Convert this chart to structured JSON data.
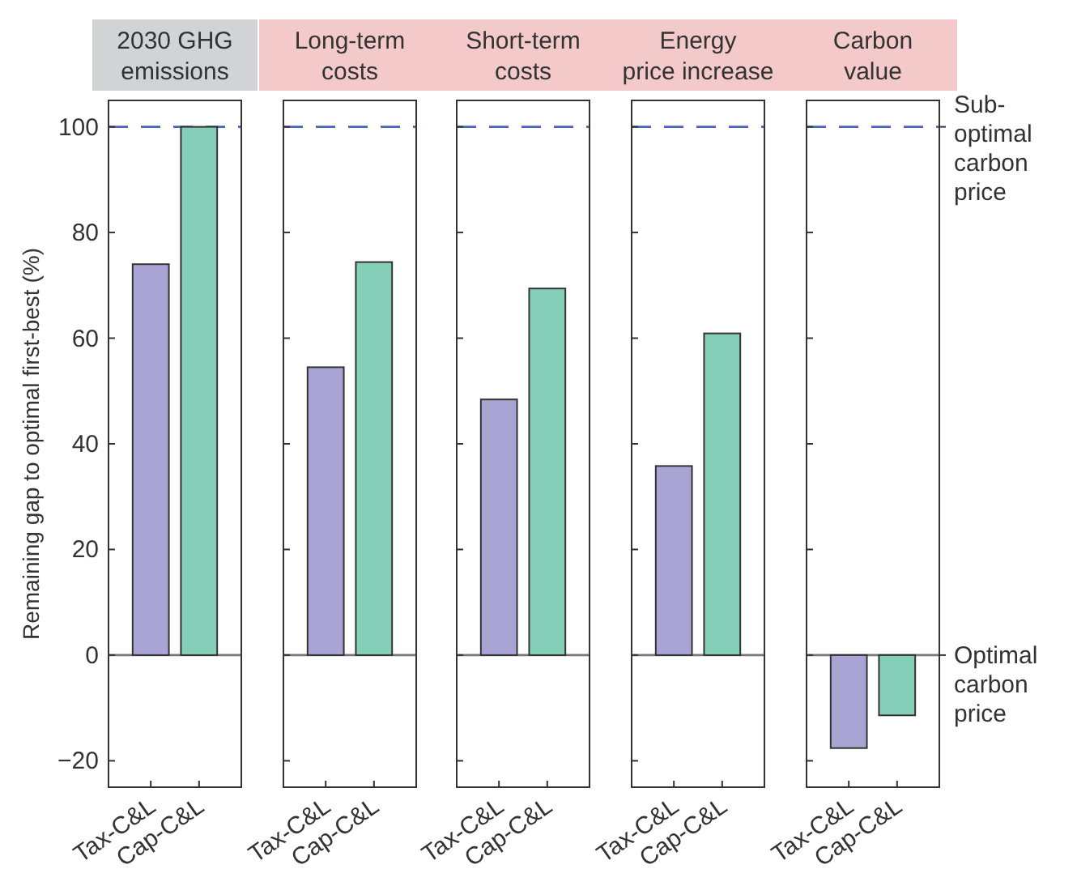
{
  "chart_data": [
    {
      "type": "bar",
      "title": "2030 GHG emissions",
      "ylabel": "Remaining gap to optimal first-best (%)",
      "categories": [
        "Tax-C&L",
        "Cap-C&L"
      ],
      "values": [
        74,
        100
      ],
      "colors": [
        "#a8a4d4",
        "#85cfb9"
      ],
      "ylim": [
        -25,
        105
      ],
      "yticks": [
        -20,
        0,
        20,
        40,
        60,
        80,
        100
      ],
      "ref_lines": [
        {
          "axis": "y",
          "value": 100,
          "color": "#4a64b8",
          "line_style": "dashed"
        },
        {
          "axis": "y",
          "value": 0,
          "color": "#777777",
          "line_style": "solid"
        }
      ]
    },
    {
      "type": "bar",
      "title": "Long-term costs",
      "categories": [
        "Tax-C&L",
        "Cap-C&L"
      ],
      "values": [
        54.5,
        74.4
      ],
      "colors": [
        "#a8a4d4",
        "#85cfb9"
      ],
      "ylim": [
        -25,
        105
      ],
      "yticks": [
        -20,
        0,
        20,
        40,
        60,
        80,
        100
      ],
      "tick_labels": "x",
      "ref_lines": [
        {
          "axis": "y",
          "value": 100,
          "color": "#4a64b8",
          "line_style": "dashed"
        },
        {
          "axis": "y",
          "value": 0,
          "color": "#777777",
          "line_style": "solid"
        }
      ]
    },
    {
      "type": "bar",
      "title": "Short-term costs",
      "categories": [
        "Tax-C&L",
        "Cap-C&L"
      ],
      "values": [
        48.4,
        69.4
      ],
      "colors": [
        "#a8a4d4",
        "#85cfb9"
      ],
      "ylim": [
        -25,
        105
      ],
      "yticks": [
        -20,
        0,
        20,
        40,
        60,
        80,
        100
      ],
      "tick_labels": "x",
      "ref_lines": [
        {
          "axis": "y",
          "value": 100,
          "color": "#4a64b8",
          "line_style": "dashed"
        },
        {
          "axis": "y",
          "value": 0,
          "color": "#777777",
          "line_style": "solid"
        }
      ]
    },
    {
      "type": "bar",
      "title": "Energy price increase",
      "categories": [
        "Tax-C&L",
        "Cap-C&L"
      ],
      "values": [
        35.8,
        60.9
      ],
      "colors": [
        "#a8a4d4",
        "#85cfb9"
      ],
      "ylim": [
        -25,
        105
      ],
      "yticks": [
        -20,
        0,
        20,
        40,
        60,
        80,
        100
      ],
      "tick_labels": "x",
      "ref_lines": [
        {
          "axis": "y",
          "value": 100,
          "color": "#4a64b8",
          "line_style": "dashed"
        },
        {
          "axis": "y",
          "value": 0,
          "color": "#777777",
          "line_style": "solid"
        }
      ]
    },
    {
      "type": "bar",
      "title": "Carbon value",
      "categories": [
        "Tax-C&L",
        "Cap-C&L"
      ],
      "values": [
        -17.6,
        -11.4
      ],
      "colors": [
        "#a8a4d4",
        "#85cfb9"
      ],
      "ylim": [
        -25,
        105
      ],
      "yticks": [
        -20,
        0,
        20,
        40,
        60,
        80,
        100
      ],
      "tick_labels": "x",
      "ref_lines": [
        {
          "axis": "y",
          "value": 100,
          "color": "#4a64b8",
          "line_style": "dashed",
          "label": "Sub-optimal carbon price"
        },
        {
          "axis": "y",
          "value": 0,
          "color": "#777777",
          "line_style": "solid",
          "label": "Optimal carbon price"
        }
      ]
    }
  ]
}
